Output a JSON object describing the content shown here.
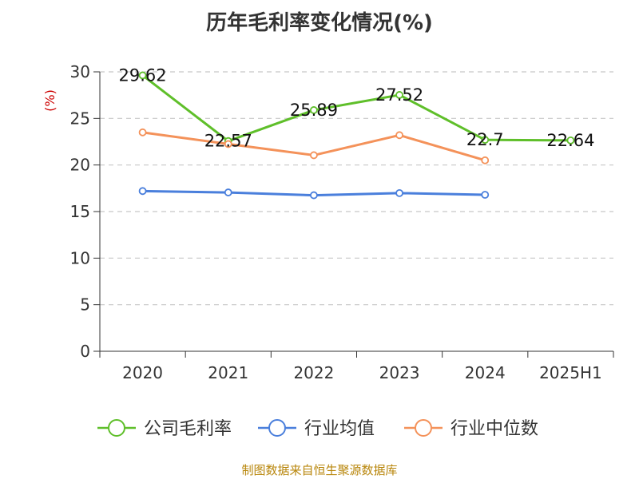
{
  "title": "历年毛利率变化情况(%)",
  "source": "制图数据来自恒生聚源数据库",
  "chart_data": {
    "type": "line",
    "title": "历年毛利率变化情况(%)",
    "ylabel": "(%)",
    "xlabel": "",
    "categories": [
      "2020",
      "2021",
      "2022",
      "2023",
      "2024",
      "2025H1"
    ],
    "ylim": [
      0,
      30
    ],
    "yticks": [
      0,
      5,
      10,
      15,
      20,
      25,
      30
    ],
    "grid": true,
    "legend_position": "bottom",
    "series": [
      {
        "name": "公司毛利率",
        "color": "#5fbf2a",
        "values": [
          29.62,
          22.57,
          25.89,
          27.52,
          22.7,
          22.64
        ],
        "labels": [
          "29.62",
          "22.57",
          "25.89",
          "27.52",
          "22.7",
          "22.64"
        ]
      },
      {
        "name": "行业均值",
        "color": "#4a7fdc",
        "values": [
          17.2,
          17.05,
          16.75,
          16.98,
          16.8,
          null
        ],
        "labels": []
      },
      {
        "name": "行业中位数",
        "color": "#f4925a",
        "values": [
          23.5,
          22.25,
          21.05,
          23.2,
          20.5,
          null
        ],
        "labels": []
      }
    ]
  }
}
